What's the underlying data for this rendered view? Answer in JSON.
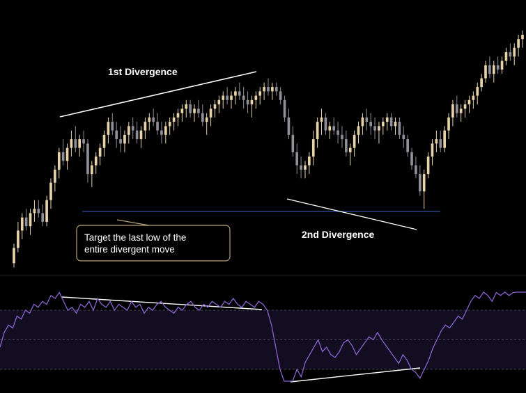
{
  "chart_data": {
    "type": "candlestick",
    "title": "",
    "xlabel": "",
    "ylabel": "",
    "grid": false,
    "colors": {
      "background": "#000000",
      "bull_candle": "#e8d3a9",
      "bear_candle": "#8f8f98",
      "oscillator_line": "#8a63d2",
      "oscillator_band": "#130d22",
      "support_line": "#2f4fa8",
      "trend_lines": "#ffffff",
      "callout_border": "#b8a27a"
    },
    "price": {
      "ylim": [
        0,
        100
      ],
      "ohlc": [
        [
          5,
          14,
          3,
          12
        ],
        [
          12,
          24,
          10,
          20
        ],
        [
          20,
          28,
          16,
          26
        ],
        [
          26,
          30,
          20,
          22
        ],
        [
          22,
          30,
          18,
          28
        ],
        [
          28,
          34,
          24,
          30
        ],
        [
          30,
          34,
          26,
          28
        ],
        [
          28,
          32,
          22,
          24
        ],
        [
          24,
          36,
          22,
          34
        ],
        [
          34,
          44,
          30,
          42
        ],
        [
          42,
          50,
          38,
          48
        ],
        [
          48,
          58,
          44,
          56
        ],
        [
          56,
          62,
          50,
          52
        ],
        [
          52,
          60,
          48,
          58
        ],
        [
          58,
          66,
          54,
          62
        ],
        [
          62,
          68,
          56,
          58
        ],
        [
          58,
          64,
          54,
          62
        ],
        [
          62,
          66,
          56,
          60
        ],
        [
          60,
          62,
          42,
          46
        ],
        [
          46,
          52,
          40,
          50
        ],
        [
          50,
          56,
          46,
          54
        ],
        [
          54,
          60,
          50,
          58
        ],
        [
          58,
          66,
          54,
          64
        ],
        [
          64,
          72,
          60,
          70
        ],
        [
          70,
          74,
          64,
          66
        ],
        [
          66,
          70,
          58,
          62
        ],
        [
          62,
          68,
          56,
          60
        ],
        [
          60,
          66,
          56,
          64
        ],
        [
          64,
          70,
          60,
          68
        ],
        [
          68,
          72,
          62,
          66
        ],
        [
          66,
          70,
          60,
          62
        ],
        [
          62,
          68,
          58,
          66
        ],
        [
          66,
          72,
          62,
          70
        ],
        [
          70,
          74,
          66,
          72
        ],
        [
          72,
          76,
          68,
          70
        ],
        [
          70,
          74,
          64,
          66
        ],
        [
          66,
          70,
          60,
          64
        ],
        [
          64,
          70,
          60,
          68
        ],
        [
          68,
          72,
          64,
          70
        ],
        [
          70,
          74,
          66,
          72
        ],
        [
          72,
          76,
          68,
          74
        ],
        [
          74,
          78,
          70,
          76
        ],
        [
          76,
          80,
          72,
          78
        ],
        [
          78,
          80,
          72,
          74
        ],
        [
          74,
          78,
          70,
          76
        ],
        [
          76,
          80,
          72,
          74
        ],
        [
          74,
          78,
          68,
          70
        ],
        [
          70,
          74,
          64,
          72
        ],
        [
          72,
          78,
          68,
          76
        ],
        [
          76,
          80,
          72,
          78
        ],
        [
          78,
          82,
          74,
          80
        ],
        [
          80,
          84,
          76,
          82
        ],
        [
          82,
          86,
          78,
          80
        ],
        [
          80,
          84,
          76,
          82
        ],
        [
          82,
          86,
          78,
          84
        ],
        [
          84,
          88,
          80,
          82
        ],
        [
          82,
          86,
          76,
          80
        ],
        [
          80,
          84,
          74,
          78
        ],
        [
          78,
          82,
          72,
          80
        ],
        [
          80,
          84,
          76,
          82
        ],
        [
          82,
          86,
          78,
          84
        ],
        [
          84,
          88,
          80,
          86
        ],
        [
          86,
          90,
          82,
          84
        ],
        [
          84,
          88,
          80,
          86
        ],
        [
          86,
          88,
          82,
          84
        ],
        [
          84,
          86,
          78,
          80
        ],
        [
          80,
          82,
          70,
          72
        ],
        [
          72,
          76,
          62,
          64
        ],
        [
          64,
          68,
          54,
          56
        ],
        [
          56,
          60,
          46,
          50
        ],
        [
          50,
          54,
          44,
          48
        ],
        [
          48,
          52,
          44,
          50
        ],
        [
          50,
          56,
          46,
          54
        ],
        [
          54,
          66,
          50,
          62
        ],
        [
          62,
          72,
          58,
          70
        ],
        [
          70,
          76,
          64,
          72
        ],
        [
          72,
          74,
          64,
          66
        ],
        [
          66,
          70,
          62,
          68
        ],
        [
          68,
          72,
          64,
          66
        ],
        [
          66,
          70,
          60,
          64
        ],
        [
          64,
          68,
          58,
          62
        ],
        [
          62,
          66,
          54,
          56
        ],
        [
          56,
          60,
          50,
          58
        ],
        [
          58,
          66,
          54,
          64
        ],
        [
          64,
          70,
          60,
          68
        ],
        [
          68,
          74,
          64,
          72
        ],
        [
          72,
          76,
          66,
          70
        ],
        [
          70,
          74,
          64,
          68
        ],
        [
          68,
          72,
          62,
          66
        ],
        [
          66,
          70,
          60,
          68
        ],
        [
          68,
          72,
          64,
          70
        ],
        [
          70,
          74,
          66,
          72
        ],
        [
          72,
          74,
          66,
          68
        ],
        [
          68,
          72,
          64,
          70
        ],
        [
          70,
          72,
          62,
          64
        ],
        [
          64,
          68,
          58,
          62
        ],
        [
          62,
          64,
          54,
          56
        ],
        [
          56,
          58,
          48,
          50
        ],
        [
          50,
          54,
          44,
          46
        ],
        [
          46,
          50,
          36,
          38
        ],
        [
          38,
          48,
          30,
          46
        ],
        [
          46,
          56,
          44,
          54
        ],
        [
          54,
          62,
          50,
          60
        ],
        [
          60,
          66,
          56,
          62
        ],
        [
          62,
          66,
          56,
          58
        ],
        [
          58,
          68,
          56,
          66
        ],
        [
          66,
          74,
          62,
          72
        ],
        [
          72,
          80,
          68,
          78
        ],
        [
          78,
          82,
          72,
          74
        ],
        [
          74,
          78,
          70,
          76
        ],
        [
          76,
          80,
          72,
          78
        ],
        [
          78,
          82,
          74,
          80
        ],
        [
          80,
          84,
          76,
          82
        ],
        [
          82,
          88,
          78,
          86
        ],
        [
          86,
          92,
          84,
          90
        ],
        [
          90,
          98,
          88,
          96
        ],
        [
          96,
          100,
          90,
          92
        ],
        [
          92,
          98,
          88,
          96
        ],
        [
          96,
          100,
          92,
          94
        ],
        [
          94,
          100,
          92,
          98
        ],
        [
          98,
          104,
          96,
          102
        ],
        [
          102,
          106,
          98,
          100
        ],
        [
          100,
          106,
          96,
          104
        ],
        [
          104,
          110,
          100,
          108
        ],
        [
          108,
          112,
          104,
          110
        ]
      ]
    },
    "oscillator": {
      "ylim": [
        0,
        100
      ],
      "levels": [
        30,
        50,
        70
      ],
      "values": [
        45,
        55,
        60,
        58,
        66,
        64,
        70,
        68,
        74,
        72,
        76,
        74,
        80,
        78,
        82,
        76,
        70,
        72,
        68,
        74,
        72,
        76,
        70,
        78,
        74,
        72,
        76,
        70,
        74,
        72,
        70,
        76,
        72,
        74,
        68,
        72,
        70,
        74,
        76,
        72,
        70,
        68,
        72,
        70,
        74,
        76,
        72,
        70,
        74,
        72,
        76,
        74,
        72,
        76,
        74,
        78,
        74,
        72,
        76,
        74,
        72,
        76,
        74,
        70,
        60,
        45,
        30,
        20,
        15,
        20,
        30,
        25,
        35,
        40,
        45,
        50,
        42,
        45,
        40,
        38,
        42,
        48,
        50,
        46,
        40,
        44,
        48,
        52,
        50,
        55,
        50,
        46,
        42,
        38,
        34,
        40,
        36,
        30,
        28,
        24,
        30,
        36,
        44,
        50,
        56,
        60,
        58,
        62,
        66,
        64,
        70,
        76,
        80,
        78,
        84,
        80,
        76,
        82,
        80,
        84,
        80,
        82,
        86,
        84,
        88
      ]
    },
    "annotations": {
      "first_divergence": "1st Divergence",
      "second_divergence": "2nd Divergence",
      "callout": [
        "Target the last low of the",
        "entire divergent move"
      ]
    }
  }
}
